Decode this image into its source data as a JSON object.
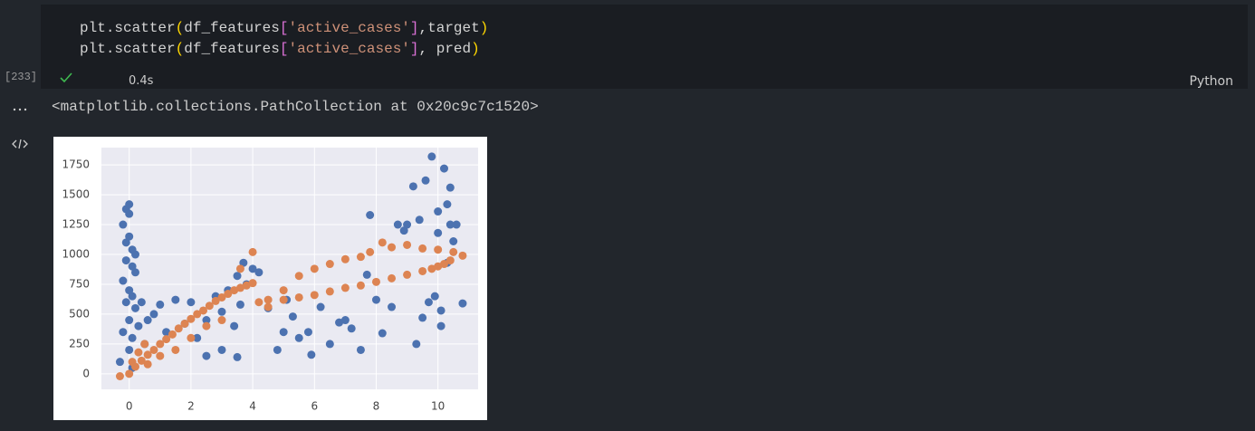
{
  "cell": {
    "code": [
      [
        "plt",
        ".",
        "scatter",
        "(",
        "df_features",
        "[",
        "'active_cases'",
        "]",
        ",target",
        ")"
      ],
      [
        "plt",
        ".",
        "scatter",
        "(",
        "df_features",
        "[",
        "'active_cases'",
        "]",
        ", pred",
        ")"
      ]
    ],
    "execution_count": "[233]",
    "duration": "0.4s",
    "language": "Python"
  },
  "output": {
    "text": "<matplotlib.collections.PathCollection at 0x20c9c7c1520>"
  },
  "chart_data": {
    "type": "scatter",
    "xlim": [
      -0.9,
      11.3
    ],
    "ylim": [
      -130,
      1895
    ],
    "xticks": [
      0,
      2,
      4,
      6,
      8,
      10
    ],
    "yticks": [
      0,
      250,
      500,
      750,
      1000,
      1250,
      1500,
      1750
    ],
    "grid": true,
    "series": [
      {
        "color": "#4c72b0",
        "x": [
          0,
          -0.1,
          0,
          -0.2,
          0,
          -0.1,
          0.1,
          0.2,
          -0.1,
          0.1,
          0.2,
          -0.2,
          0,
          0.1,
          -0.1,
          0.2,
          0,
          -0.2,
          0.1,
          0,
          -0.3,
          0.1,
          0.3,
          0.4,
          0.5,
          0.6,
          0.8,
          1,
          1.2,
          1.5,
          1.8,
          2,
          2.2,
          2.5,
          2.8,
          3,
          3.2,
          3.5,
          3.4,
          3.6,
          3.8,
          4,
          3.7,
          4.2,
          3.5,
          3,
          2.5,
          4.5,
          4.8,
          5,
          5.1,
          5.3,
          5.5,
          5.8,
          5.9,
          6.2,
          6.5,
          6.8,
          7,
          7.2,
          7.5,
          7.7,
          7.8,
          8,
          8.2,
          8.5,
          9,
          8.7,
          9.2,
          9.4,
          9.3,
          9.6,
          9.7,
          9.8,
          9.9,
          10,
          10.2,
          10.1,
          10.3,
          10.4,
          10.5,
          10.6,
          10.1,
          10.3,
          10.8,
          10.4,
          10,
          8.9,
          9.5
        ],
        "values": [
          1420,
          1380,
          1340,
          1250,
          1150,
          1100,
          1040,
          1000,
          950,
          900,
          850,
          780,
          700,
          650,
          600,
          550,
          450,
          350,
          300,
          200,
          100,
          50,
          400,
          600,
          250,
          450,
          500,
          580,
          350,
          620,
          420,
          600,
          300,
          450,
          650,
          520,
          700,
          820,
          400,
          580,
          750,
          880,
          930,
          850,
          140,
          200,
          150,
          550,
          200,
          350,
          620,
          480,
          300,
          350,
          160,
          560,
          250,
          430,
          450,
          380,
          200,
          830,
          1330,
          620,
          340,
          560,
          1250,
          1250,
          1570,
          1290,
          250,
          1620,
          600,
          1820,
          650,
          1360,
          1720,
          400,
          1420,
          1250,
          1110,
          1250,
          530,
          930,
          590,
          1560,
          1180,
          1200,
          470
        ]
      },
      {
        "color": "#dd8452",
        "x": [
          0,
          0.2,
          0.4,
          0.6,
          0.8,
          1,
          1.2,
          1.4,
          1.6,
          1.8,
          2,
          2.2,
          2.4,
          2.6,
          2.8,
          3,
          3.2,
          3.4,
          3.6,
          3.8,
          4,
          4,
          3.6,
          0.3,
          0.5,
          1,
          1.5,
          2,
          3,
          4.5,
          4.2,
          -0.3,
          0.1,
          0.6,
          2.5,
          5,
          5.5,
          6,
          6.5,
          7,
          7.5,
          7.8,
          8.2,
          8.5,
          9,
          9.5,
          10,
          10.5,
          10.8,
          4.5,
          5,
          5.5,
          6,
          6.5,
          7,
          7.5,
          8,
          8.5,
          9,
          9.5,
          9.8,
          10,
          10.2,
          10.4
        ],
        "values": [
          0,
          60,
          110,
          160,
          200,
          250,
          290,
          330,
          380,
          420,
          460,
          500,
          530,
          570,
          610,
          640,
          670,
          700,
          720,
          740,
          760,
          1020,
          880,
          180,
          250,
          150,
          200,
          300,
          450,
          620,
          600,
          -20,
          100,
          80,
          400,
          700,
          820,
          880,
          920,
          960,
          980,
          1020,
          1100,
          1060,
          1080,
          1050,
          1040,
          1020,
          990,
          560,
          620,
          640,
          660,
          690,
          720,
          740,
          770,
          800,
          830,
          860,
          880,
          900,
          920,
          950
        ]
      }
    ]
  }
}
